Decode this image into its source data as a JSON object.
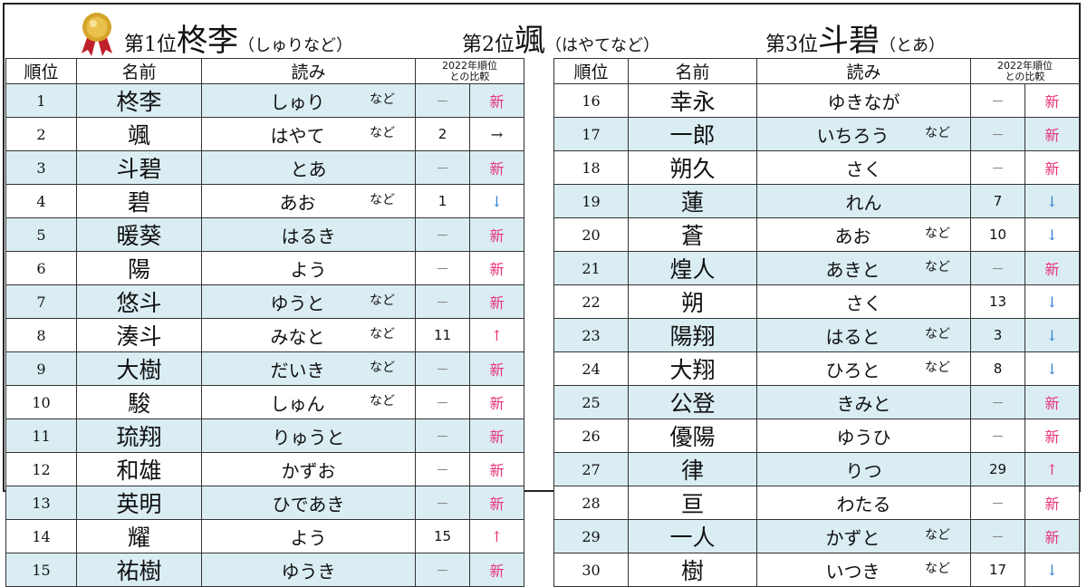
{
  "header": {
    "top1": {
      "pre": "第1位",
      "name": "柊李",
      "reading": "（しゅりなど）"
    },
    "top2": {
      "pre": "第2位",
      "name": "颯",
      "reading": "（はやてなど）"
    },
    "top3": {
      "pre": "第3位",
      "name": "斗碧",
      "reading": "（とあ）"
    },
    "medal_color": "#d4a52a"
  },
  "columns": {
    "rank": "順位",
    "name": "名前",
    "reading": "読み",
    "compare_line1": "2022年順位",
    "compare_line2": "との比較"
  },
  "colors": {
    "shade": "#daedf3",
    "new": "#e8327a",
    "down": "#2f7fd0",
    "up": "#e8327a"
  },
  "rows": [
    {
      "rank": "1",
      "name": "柊李",
      "reading": "しゅり",
      "nado": "など",
      "prev": "－",
      "move": "新",
      "kind": "new"
    },
    {
      "rank": "2",
      "name": "颯",
      "reading": "はやて",
      "nado": "など",
      "prev": "2",
      "move": "→",
      "kind": "same"
    },
    {
      "rank": "3",
      "name": "斗碧",
      "reading": "とあ",
      "nado": "",
      "prev": "－",
      "move": "新",
      "kind": "new"
    },
    {
      "rank": "4",
      "name": "碧",
      "reading": "あお",
      "nado": "など",
      "prev": "1",
      "move": "↓",
      "kind": "down"
    },
    {
      "rank": "5",
      "name": "暖葵",
      "reading": "はるき",
      "nado": "",
      "prev": "－",
      "move": "新",
      "kind": "new"
    },
    {
      "rank": "6",
      "name": "陽",
      "reading": "よう",
      "nado": "",
      "prev": "－",
      "move": "新",
      "kind": "new"
    },
    {
      "rank": "7",
      "name": "悠斗",
      "reading": "ゆうと",
      "nado": "など",
      "prev": "－",
      "move": "新",
      "kind": "new"
    },
    {
      "rank": "8",
      "name": "湊斗",
      "reading": "みなと",
      "nado": "など",
      "prev": "11",
      "move": "↑",
      "kind": "up"
    },
    {
      "rank": "9",
      "name": "大樹",
      "reading": "だいき",
      "nado": "など",
      "prev": "－",
      "move": "新",
      "kind": "new"
    },
    {
      "rank": "10",
      "name": "駿",
      "reading": "しゅん",
      "nado": "など",
      "prev": "－",
      "move": "新",
      "kind": "new"
    },
    {
      "rank": "11",
      "name": "琉翔",
      "reading": "りゅうと",
      "nado": "",
      "prev": "－",
      "move": "新",
      "kind": "new"
    },
    {
      "rank": "12",
      "name": "和雄",
      "reading": "かずお",
      "nado": "",
      "prev": "－",
      "move": "新",
      "kind": "new"
    },
    {
      "rank": "13",
      "name": "英明",
      "reading": "ひであき",
      "nado": "",
      "prev": "－",
      "move": "新",
      "kind": "new"
    },
    {
      "rank": "14",
      "name": "耀",
      "reading": "よう",
      "nado": "",
      "prev": "15",
      "move": "↑",
      "kind": "up"
    },
    {
      "rank": "15",
      "name": "祐樹",
      "reading": "ゆうき",
      "nado": "",
      "prev": "－",
      "move": "新",
      "kind": "new"
    },
    {
      "rank": "16",
      "name": "幸永",
      "reading": "ゆきなが",
      "nado": "",
      "prev": "－",
      "move": "新",
      "kind": "new"
    },
    {
      "rank": "17",
      "name": "一郎",
      "reading": "いちろう",
      "nado": "など",
      "prev": "－",
      "move": "新",
      "kind": "new"
    },
    {
      "rank": "18",
      "name": "朔久",
      "reading": "さく",
      "nado": "",
      "prev": "－",
      "move": "新",
      "kind": "new"
    },
    {
      "rank": "19",
      "name": "蓮",
      "reading": "れん",
      "nado": "",
      "prev": "7",
      "move": "↓",
      "kind": "down"
    },
    {
      "rank": "20",
      "name": "蒼",
      "reading": "あお",
      "nado": "など",
      "prev": "10",
      "move": "↓",
      "kind": "down"
    },
    {
      "rank": "21",
      "name": "煌人",
      "reading": "あきと",
      "nado": "など",
      "prev": "－",
      "move": "新",
      "kind": "new"
    },
    {
      "rank": "22",
      "name": "朔",
      "reading": "さく",
      "nado": "",
      "prev": "13",
      "move": "↓",
      "kind": "down"
    },
    {
      "rank": "23",
      "name": "陽翔",
      "reading": "はると",
      "nado": "など",
      "prev": "3",
      "move": "↓",
      "kind": "down"
    },
    {
      "rank": "24",
      "name": "大翔",
      "reading": "ひろと",
      "nado": "など",
      "prev": "8",
      "move": "↓",
      "kind": "down"
    },
    {
      "rank": "25",
      "name": "公登",
      "reading": "きみと",
      "nado": "",
      "prev": "－",
      "move": "新",
      "kind": "new"
    },
    {
      "rank": "26",
      "name": "優陽",
      "reading": "ゆうひ",
      "nado": "",
      "prev": "－",
      "move": "新",
      "kind": "new"
    },
    {
      "rank": "27",
      "name": "律",
      "reading": "りつ",
      "nado": "",
      "prev": "29",
      "move": "↑",
      "kind": "up"
    },
    {
      "rank": "28",
      "name": "亘",
      "reading": "わたる",
      "nado": "",
      "prev": "－",
      "move": "新",
      "kind": "new"
    },
    {
      "rank": "29",
      "name": "一人",
      "reading": "かずと",
      "nado": "など",
      "prev": "－",
      "move": "新",
      "kind": "new"
    },
    {
      "rank": "30",
      "name": "樹",
      "reading": "いつき",
      "nado": "など",
      "prev": "17",
      "move": "↓",
      "kind": "down"
    }
  ]
}
